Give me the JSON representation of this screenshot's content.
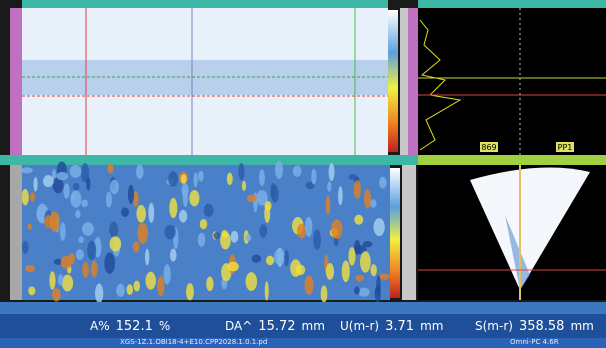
{
  "readings": [
    {
      "label": "A%",
      "value": "152.1",
      "unit": "%"
    },
    {
      "label": "DA^",
      "value": "15.72",
      "unit": "mm"
    },
    {
      "label": "U(m-r)",
      "value": "3.71",
      "unit": "mm"
    },
    {
      "label": "S(m-r)",
      "value": "358.58",
      "unit": "mm"
    }
  ],
  "status": {
    "file": "XGS-1Z.1.OBI18-4+E10.CPP2028.1.0.1.pd",
    "mode": "Omni-PC 4.6R"
  },
  "panel_labels": {
    "cursor_a": "869",
    "cursor_b": "PP1"
  }
}
